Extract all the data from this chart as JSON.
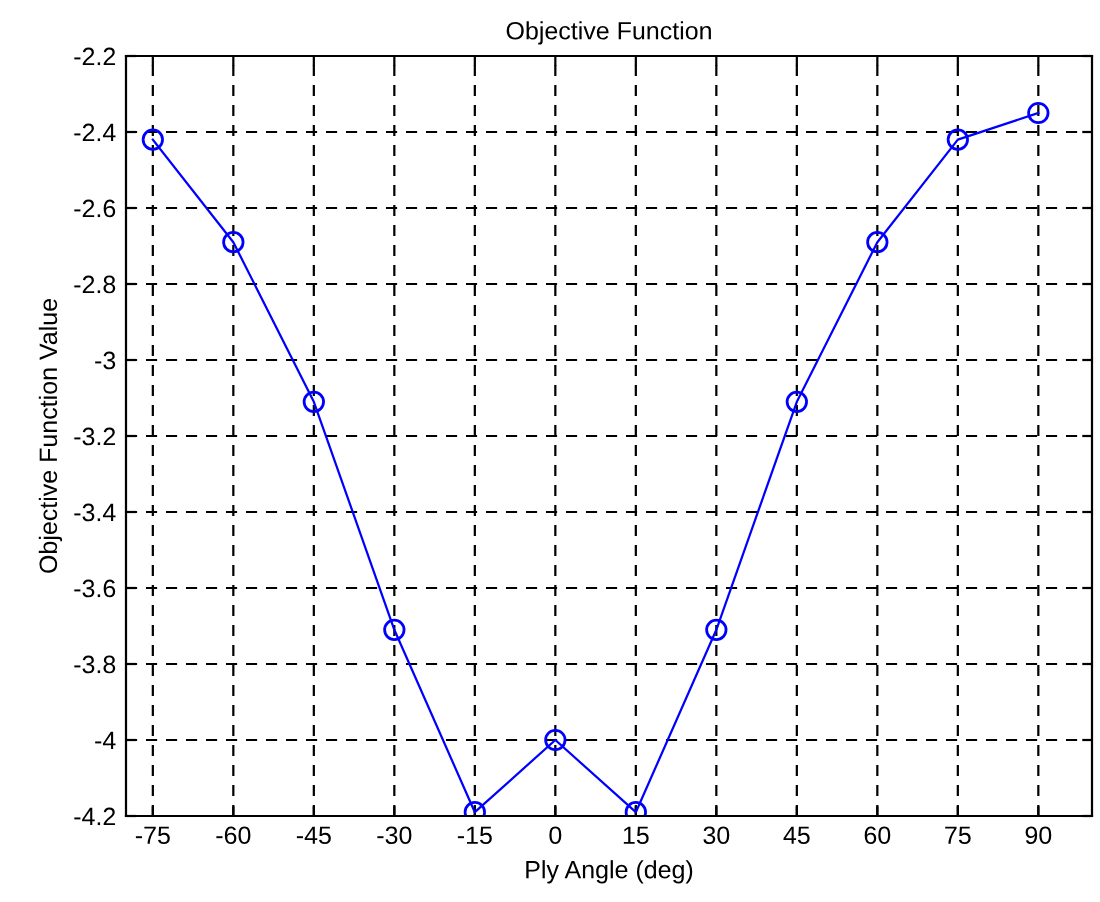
{
  "chart_data": {
    "type": "line",
    "title": "Objective Function",
    "xlabel": "Ply Angle (deg)",
    "ylabel": "Objective Function Value",
    "x": [
      -75,
      -60,
      -45,
      -30,
      -15,
      0,
      15,
      30,
      45,
      60,
      75,
      90
    ],
    "series": [
      {
        "color": "#0000ff",
        "values": [
          -2.42,
          -2.69,
          -3.11,
          -3.71,
          -4.19,
          -4.0,
          -4.19,
          -3.71,
          -3.11,
          -2.69,
          -2.42,
          -2.35
        ]
      }
    ],
    "xlim": [
      -80,
      100
    ],
    "xticks": [
      -75,
      -60,
      -45,
      -30,
      -15,
      0,
      15,
      30,
      45,
      60,
      75,
      90
    ],
    "ylim": [
      -4.2,
      -2.2
    ],
    "yticks": [
      -4.2,
      -4,
      -3.8,
      -3.6,
      -3.4,
      -3.2,
      -3,
      -2.8,
      -2.6,
      -2.4,
      -2.2
    ],
    "grid": true,
    "marker": "circle",
    "line_style": "solid"
  }
}
